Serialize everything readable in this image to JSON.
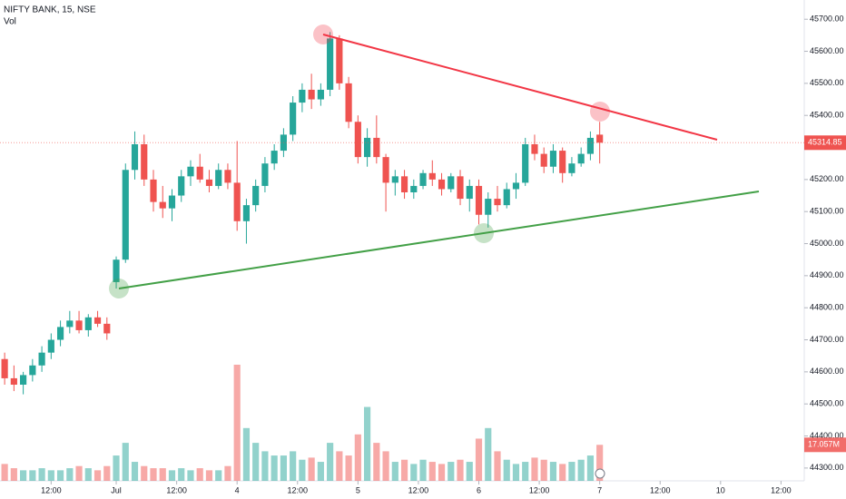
{
  "chart_data": {
    "type": "candlestick",
    "title": "NIFTY BANK, 15, NSE",
    "subtitle": "Vol",
    "up_color": "#26a69a",
    "down_color": "#ef5350",
    "open": [
      44640,
      44580,
      44560,
      44590,
      44620,
      44660,
      44700,
      44740,
      44760,
      44730,
      44770,
      44750,
      44880,
      44950,
      45230,
      45310,
      45200,
      45130,
      45110,
      45150,
      45210,
      45240,
      45200,
      45180,
      45230,
      45190,
      45070,
      45120,
      45180,
      45250,
      45290,
      45340,
      45440,
      45480,
      45450,
      45480,
      45640,
      45500,
      45380,
      45270,
      45330,
      45270,
      45190,
      45210,
      45160,
      45180,
      45220,
      45200,
      45170,
      45210,
      45140,
      45180,
      45090,
      45140,
      45120,
      45170,
      45190,
      45310,
      45280,
      45240,
      45290,
      45220,
      45250,
      45280,
      45340
    ],
    "high": [
      44660,
      44620,
      44600,
      44640,
      44680,
      44720,
      44760,
      44790,
      44790,
      44780,
      44790,
      44770,
      44960,
      45250,
      45350,
      45340,
      45230,
      45180,
      45170,
      45230,
      45260,
      45280,
      45230,
      45250,
      45250,
      45320,
      45140,
      45200,
      45270,
      45310,
      45360,
      45460,
      45500,
      45530,
      45500,
      45660,
      45650,
      45520,
      45400,
      45360,
      45400,
      45280,
      45230,
      45230,
      45200,
      45230,
      45260,
      45220,
      45220,
      45230,
      45200,
      45200,
      45160,
      45180,
      45190,
      45220,
      45330,
      45340,
      45300,
      45310,
      45300,
      45270,
      45300,
      45350,
      45380
    ],
    "low": [
      44560,
      44540,
      44530,
      44570,
      44600,
      44640,
      44680,
      44720,
      44720,
      44710,
      44740,
      44700,
      44860,
      44940,
      45200,
      45180,
      45100,
      45080,
      45070,
      45130,
      45180,
      45190,
      45160,
      45170,
      45170,
      45040,
      45000,
      45100,
      45160,
      45230,
      45270,
      45320,
      45410,
      45420,
      45430,
      45460,
      45480,
      45360,
      45250,
      45240,
      45250,
      45100,
      45150,
      45140,
      45140,
      45170,
      45180,
      45150,
      45160,
      45120,
      45100,
      45060,
      45050,
      45100,
      45110,
      45140,
      45180,
      45260,
      45220,
      45220,
      45190,
      45210,
      45240,
      45260,
      45250
    ],
    "close": [
      44580,
      44560,
      44590,
      44620,
      44660,
      44700,
      44740,
      44760,
      44730,
      44770,
      44750,
      44720,
      44950,
      45230,
      45310,
      45200,
      45130,
      45110,
      45150,
      45210,
      45240,
      45200,
      45180,
      45230,
      45190,
      45070,
      45120,
      45180,
      45250,
      45290,
      45340,
      45440,
      45480,
      45450,
      45480,
      45640,
      45500,
      45380,
      45270,
      45330,
      45270,
      45190,
      45210,
      45160,
      45180,
      45220,
      45200,
      45170,
      45210,
      45140,
      45180,
      45090,
      45140,
      45120,
      45170,
      45190,
      45310,
      45280,
      45240,
      45290,
      45220,
      45250,
      45280,
      45330,
      45314.85
    ],
    "volume": [
      8,
      6,
      5,
      5,
      6,
      5,
      5,
      6,
      7,
      6,
      5,
      7,
      12,
      18,
      9,
      7,
      6,
      6,
      5,
      6,
      5,
      6,
      5,
      5,
      7,
      55,
      25,
      18,
      14,
      12,
      12,
      14,
      10,
      11,
      9,
      18,
      14,
      12,
      22,
      35,
      18,
      14,
      9,
      10,
      8,
      10,
      9,
      8,
      9,
      10,
      9,
      20,
      25,
      14,
      10,
      8,
      9,
      11,
      10,
      9,
      8,
      9,
      10,
      12,
      17.057
    ],
    "last_volume_label": "17.057M",
    "vlim": [
      0,
      58
    ],
    "xlim": [
      -0.5,
      86
    ],
    "xticks": [
      {
        "value": 5,
        "label": "12:00"
      },
      {
        "value": 12,
        "label": "Jul"
      },
      {
        "value": 18.5,
        "label": "12:00"
      },
      {
        "value": 25,
        "label": "4"
      },
      {
        "value": 31.5,
        "label": "12:00"
      },
      {
        "value": 38,
        "label": "5"
      },
      {
        "value": 44.5,
        "label": "12:00"
      },
      {
        "value": 51,
        "label": "6"
      },
      {
        "value": 57.5,
        "label": "12:00"
      },
      {
        "value": 64,
        "label": "7"
      },
      {
        "value": 70.5,
        "label": "12:00"
      },
      {
        "value": 77,
        "label": "10"
      },
      {
        "value": 83.5,
        "label": "12:00"
      }
    ],
    "ylim": [
      44260,
      45760
    ],
    "yticks": [
      {
        "value": 44300,
        "label": "44300.00"
      },
      {
        "value": 44400,
        "label": "44400.00"
      },
      {
        "value": 44500,
        "label": "44500.00"
      },
      {
        "value": 44600,
        "label": "44600.00"
      },
      {
        "value": 44700,
        "label": "44700.00"
      },
      {
        "value": 44800,
        "label": "44800.00"
      },
      {
        "value": 44900,
        "label": "44900.00"
      },
      {
        "value": 45000,
        "label": "45000.00"
      },
      {
        "value": 45100,
        "label": "45100.00"
      },
      {
        "value": 45200,
        "label": "45200.00"
      },
      {
        "value": 45300,
        "label": "45300.00"
      },
      {
        "value": 45400,
        "label": "45400.00"
      },
      {
        "value": 45500,
        "label": "45500.00"
      },
      {
        "value": 45600,
        "label": "45600.00"
      },
      {
        "value": 45700,
        "label": "45700.00"
      }
    ]
  }
}
